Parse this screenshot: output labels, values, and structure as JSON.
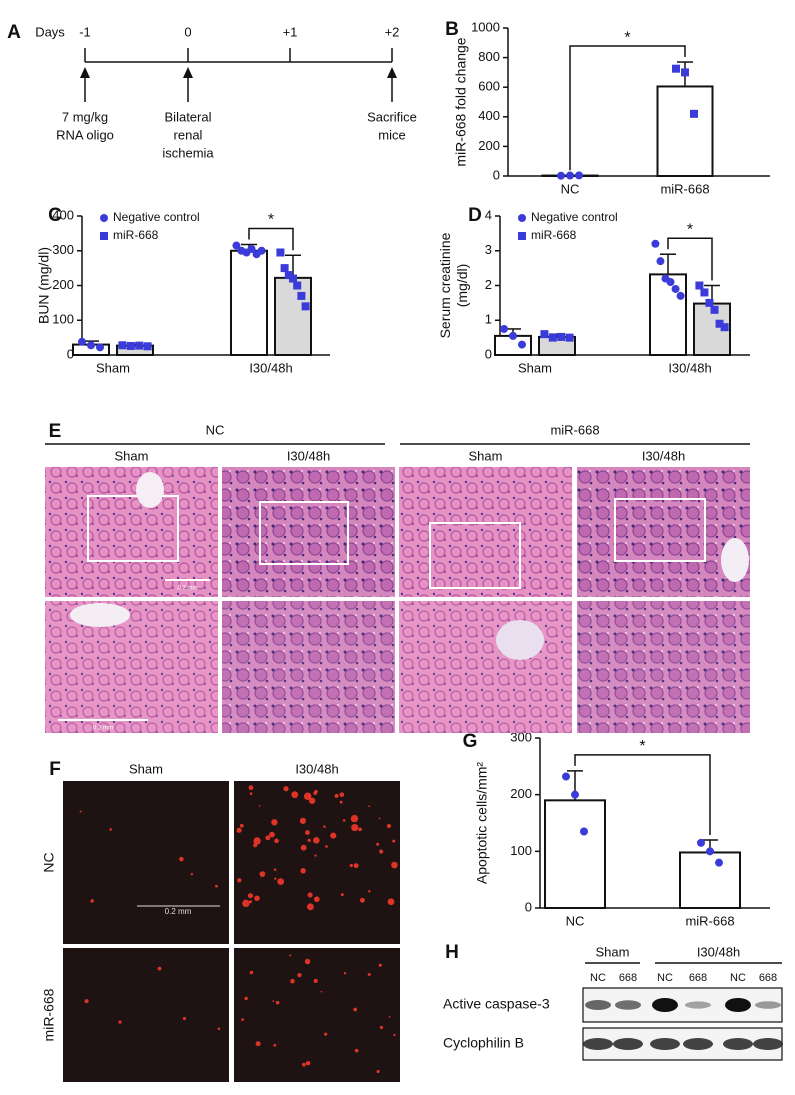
{
  "panel_letters": [
    "A",
    "B",
    "C",
    "D",
    "E",
    "F",
    "G",
    "H"
  ],
  "timeline": {
    "unit": "Days",
    "days": [
      "-1",
      "0",
      "+1",
      "+2"
    ],
    "events": [
      [
        "7 mg/kg",
        "RNA oligo"
      ],
      [
        "Bilateral",
        "renal",
        "ischemia"
      ],
      [
        "Sacrifice",
        "mice"
      ]
    ]
  },
  "chart_data": [
    {
      "type": "bar",
      "ylabel": [
        "miR-668 fold change"
      ],
      "categories": [
        "NC",
        "miR-668"
      ],
      "ylim": [
        0,
        1000
      ],
      "yticks": [
        0,
        200,
        400,
        600,
        800,
        1000
      ],
      "annotation": "*",
      "series": [
        {
          "color": "#ffffff",
          "point_color": "#3b3bd9",
          "marker": [
            "circle",
            "square"
          ],
          "values": [
            3,
            605
          ],
          "errors": [
            2,
            165
          ],
          "points": [
            [
              2,
              3,
              4
            ],
            [
              725,
              700,
              420
            ]
          ]
        }
      ]
    },
    {
      "type": "bar",
      "ylabel": [
        "BUN (mg/dl)"
      ],
      "categories": [
        "Sham",
        "I30/48h"
      ],
      "ylim": [
        0,
        400
      ],
      "yticks": [
        0,
        100,
        200,
        300,
        400
      ],
      "annotation": "*",
      "series": [
        {
          "name": "Negative control",
          "color": "#ffffff",
          "point_color": "#3b3bd9",
          "marker": "circle",
          "values": [
            30,
            300
          ],
          "errors": [
            10,
            18
          ],
          "points": [
            [
              38,
              28,
              22
            ],
            [
              315,
              300,
              295,
              305,
              290,
              300
            ]
          ]
        },
        {
          "name": "miR-668",
          "color": "#d9d9d9",
          "point_color": "#3b3bd9",
          "marker": "square",
          "values": [
            27,
            222
          ],
          "errors": [
            4,
            65
          ],
          "points": [
            [
              28,
              26,
              27,
              25
            ],
            [
              295,
              250,
              230,
              220,
              200,
              170,
              140
            ]
          ]
        }
      ]
    },
    {
      "type": "bar",
      "ylabel": [
        "Serum creatinine",
        "(mg/dl)"
      ],
      "categories": [
        "Sham",
        "I30/48h"
      ],
      "ylim": [
        0,
        4
      ],
      "yticks": [
        0,
        1,
        2,
        3,
        4
      ],
      "annotation": "*",
      "series": [
        {
          "name": "Negative control",
          "color": "#ffffff",
          "point_color": "#3b3bd9",
          "marker": "circle",
          "values": [
            0.55,
            2.32
          ],
          "errors": [
            0.2,
            0.58
          ],
          "points": [
            [
              0.75,
              0.55,
              0.3
            ],
            [
              3.2,
              2.7,
              2.2,
              2.1,
              1.9,
              1.7
            ]
          ]
        },
        {
          "name": "miR-668",
          "color": "#d9d9d9",
          "point_color": "#3b3bd9",
          "marker": "square",
          "values": [
            0.52,
            1.48
          ],
          "errors": [
            0.08,
            0.52
          ],
          "points": [
            [
              0.6,
              0.5,
              0.52,
              0.5
            ],
            [
              2.0,
              1.8,
              1.5,
              1.3,
              0.9,
              0.8
            ]
          ]
        }
      ]
    },
    {
      "type": "bar",
      "ylabel": [
        "Apoptotic cells/mm²"
      ],
      "categories": [
        "NC",
        "miR-668"
      ],
      "ylim": [
        0,
        300
      ],
      "yticks": [
        0,
        100,
        200,
        300
      ],
      "annotation": "*",
      "series": [
        {
          "color": "#ffffff",
          "point_color": "#3b3bd9",
          "marker": "circle",
          "values": [
            190,
            98
          ],
          "errors": [
            52,
            22
          ],
          "points": [
            [
              232,
              200,
              135
            ],
            [
              115,
              100,
              80
            ]
          ]
        }
      ]
    }
  ],
  "histology": {
    "groups": [
      "NC",
      "miR-668"
    ],
    "conditions": [
      "Sham",
      "I30/48h",
      "Sham",
      "I30/48h"
    ],
    "scale_bars": [
      "0.2 mm",
      "0.2 mm"
    ]
  },
  "fluorescence": {
    "columns": [
      "Sham",
      "I30/48h"
    ],
    "rows": [
      "NC",
      "miR-668"
    ],
    "scale_bar": "0.2 mm"
  },
  "western_blot": {
    "groups": [
      "Sham",
      "I30/48h"
    ],
    "lanes": [
      "NC",
      "668",
      "NC",
      "668",
      "NC",
      "668"
    ],
    "proteins": [
      "Active caspase-3",
      "Cyclophilin B"
    ]
  }
}
